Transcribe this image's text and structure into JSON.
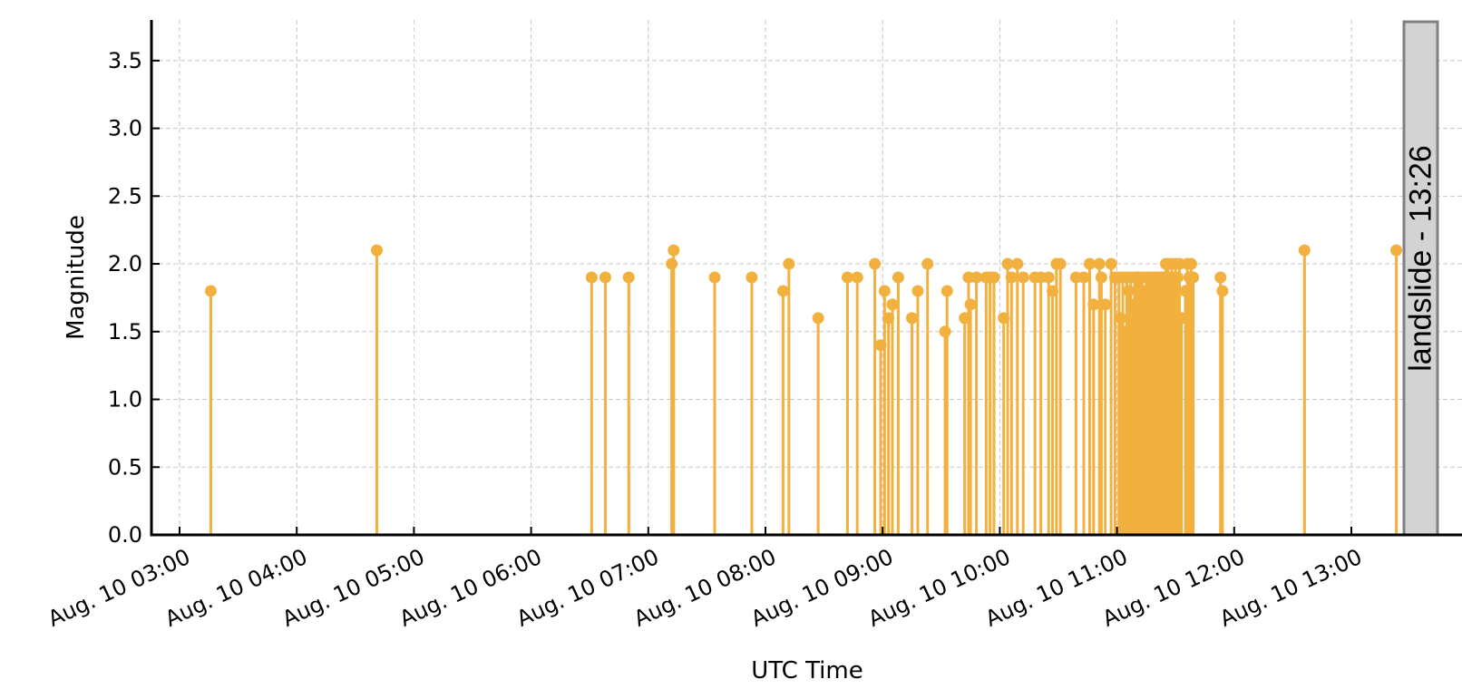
{
  "chart_data": {
    "type": "stem",
    "title": "",
    "xlabel": "UTC Time",
    "ylabel": "Magnitude",
    "ylim": [
      0,
      3.8
    ],
    "yticks": [
      0.0,
      0.5,
      1.0,
      1.5,
      2.0,
      2.5,
      3.0,
      3.5
    ],
    "ytick_labels": [
      "0.0",
      "0.5",
      "1.0",
      "1.5",
      "2.0",
      "2.5",
      "3.0",
      "3.5"
    ],
    "xlim": [
      "Aug. 10 02:45",
      "Aug. 10 14:15"
    ],
    "xticks": [
      "Aug. 10 03:00",
      "Aug. 10 04:00",
      "Aug. 10 05:00",
      "Aug. 10 06:00",
      "Aug. 10 07:00",
      "Aug. 10 08:00",
      "Aug. 10 09:00",
      "Aug. 10 10:00",
      "Aug. 10 11:00",
      "Aug. 10 12:00",
      "Aug. 10 13:00"
    ],
    "grid": true,
    "color": "#F2B13E",
    "annotation": {
      "label": "landslide - 13:26",
      "time": "Aug. 10 13:26"
    },
    "series": [
      {
        "points": [
          [
            "Aug. 10 03:16",
            1.8
          ],
          [
            "Aug. 10 04:41",
            2.1
          ],
          [
            "Aug. 10 06:31",
            1.9
          ],
          [
            "Aug. 10 06:38",
            1.9
          ],
          [
            "Aug. 10 06:50",
            1.9
          ],
          [
            "Aug. 10 07:12",
            2.0
          ],
          [
            "Aug. 10 07:13",
            2.1
          ],
          [
            "Aug. 10 07:34",
            1.9
          ],
          [
            "Aug. 10 07:53",
            1.9
          ],
          [
            "Aug. 10 08:09",
            1.8
          ],
          [
            "Aug. 10 08:12",
            2.0
          ],
          [
            "Aug. 10 08:27",
            1.6
          ],
          [
            "Aug. 10 08:42",
            1.9
          ],
          [
            "Aug. 10 08:47",
            1.9
          ],
          [
            "Aug. 10 08:56",
            2.0
          ],
          [
            "Aug. 10 08:59",
            1.4
          ],
          [
            "Aug. 10 09:01",
            1.8
          ],
          [
            "Aug. 10 09:03",
            1.6
          ],
          [
            "Aug. 10 09:05",
            1.7
          ],
          [
            "Aug. 10 09:08",
            1.9
          ],
          [
            "Aug. 10 09:15",
            1.6
          ],
          [
            "Aug. 10 09:18",
            1.8
          ],
          [
            "Aug. 10 09:23",
            2.0
          ],
          [
            "Aug. 10 09:32",
            1.5
          ],
          [
            "Aug. 10 09:33",
            1.8
          ],
          [
            "Aug. 10 09:42",
            1.6
          ],
          [
            "Aug. 10 09:44",
            1.9
          ],
          [
            "Aug. 10 09:45",
            1.7
          ],
          [
            "Aug. 10 09:48",
            1.9
          ],
          [
            "Aug. 10 09:53",
            1.9
          ],
          [
            "Aug. 10 09:55",
            1.9
          ],
          [
            "Aug. 10 09:57",
            1.9
          ],
          [
            "Aug. 10 10:02",
            1.6
          ],
          [
            "Aug. 10 10:04",
            2.0
          ],
          [
            "Aug. 10 10:06",
            1.9
          ],
          [
            "Aug. 10 10:09",
            2.0
          ],
          [
            "Aug. 10 10:12",
            1.9
          ],
          [
            "Aug. 10 10:18",
            1.9
          ],
          [
            "Aug. 10 10:21",
            1.9
          ],
          [
            "Aug. 10 10:25",
            1.9
          ],
          [
            "Aug. 10 10:27",
            1.8
          ],
          [
            "Aug. 10 10:29",
            2.0
          ],
          [
            "Aug. 10 10:31",
            2.0
          ],
          [
            "Aug. 10 10:39",
            1.9
          ],
          [
            "Aug. 10 10:43",
            1.9
          ],
          [
            "Aug. 10 10:46",
            2.0
          ],
          [
            "Aug. 10 10:48",
            1.7
          ],
          [
            "Aug. 10 10:51",
            2.0
          ],
          [
            "Aug. 10 10:52",
            1.9
          ],
          [
            "Aug. 10 10:54",
            1.7
          ],
          [
            "Aug. 10 10:57",
            2.0
          ],
          [
            "Aug. 10 10:59",
            1.9
          ],
          [
            "Aug. 10 11:01",
            1.9
          ],
          [
            "Aug. 10 11:02",
            1.6
          ],
          [
            "Aug. 10 11:03",
            1.9
          ],
          [
            "Aug. 10 11:04",
            1.5
          ],
          [
            "Aug. 10 11:05",
            1.9
          ],
          [
            "Aug. 10 11:06",
            1.8
          ],
          [
            "Aug. 10 11:07",
            1.9
          ],
          [
            "Aug. 10 11:08",
            1.7
          ],
          [
            "Aug. 10 11:09",
            1.9
          ],
          [
            "Aug. 10 11:10",
            1.9
          ],
          [
            "Aug. 10 11:11",
            1.9
          ],
          [
            "Aug. 10 11:12",
            1.9
          ],
          [
            "Aug. 10 11:13",
            1.9
          ],
          [
            "Aug. 10 11:14",
            1.8
          ],
          [
            "Aug. 10 11:15",
            1.9
          ],
          [
            "Aug. 10 11:16",
            1.9
          ],
          [
            "Aug. 10 11:17",
            1.9
          ],
          [
            "Aug. 10 11:18",
            1.9
          ],
          [
            "Aug. 10 11:19",
            1.9
          ],
          [
            "Aug. 10 11:20",
            1.9
          ],
          [
            "Aug. 10 11:21",
            1.9
          ],
          [
            "Aug. 10 11:22",
            1.9
          ],
          [
            "Aug. 10 11:23",
            1.9
          ],
          [
            "Aug. 10 11:24",
            1.9
          ],
          [
            "Aug. 10 11:25",
            2.0
          ],
          [
            "Aug. 10 11:26",
            2.0
          ],
          [
            "Aug. 10 11:27",
            1.9
          ],
          [
            "Aug. 10 11:28",
            2.0
          ],
          [
            "Aug. 10 11:29",
            1.9
          ],
          [
            "Aug. 10 11:30",
            2.0
          ],
          [
            "Aug. 10 11:31",
            1.9
          ],
          [
            "Aug. 10 11:32",
            2.0
          ],
          [
            "Aug. 10 11:33",
            1.6
          ],
          [
            "Aug. 10 11:35",
            1.8
          ],
          [
            "Aug. 10 11:36",
            2.0
          ],
          [
            "Aug. 10 11:37",
            1.9
          ],
          [
            "Aug. 10 11:38",
            2.0
          ],
          [
            "Aug. 10 11:39",
            1.9
          ],
          [
            "Aug. 10 11:53",
            1.9
          ],
          [
            "Aug. 10 11:54",
            1.8
          ],
          [
            "Aug. 10 12:36",
            2.1
          ],
          [
            "Aug. 10 13:23",
            2.1
          ]
        ]
      }
    ]
  }
}
